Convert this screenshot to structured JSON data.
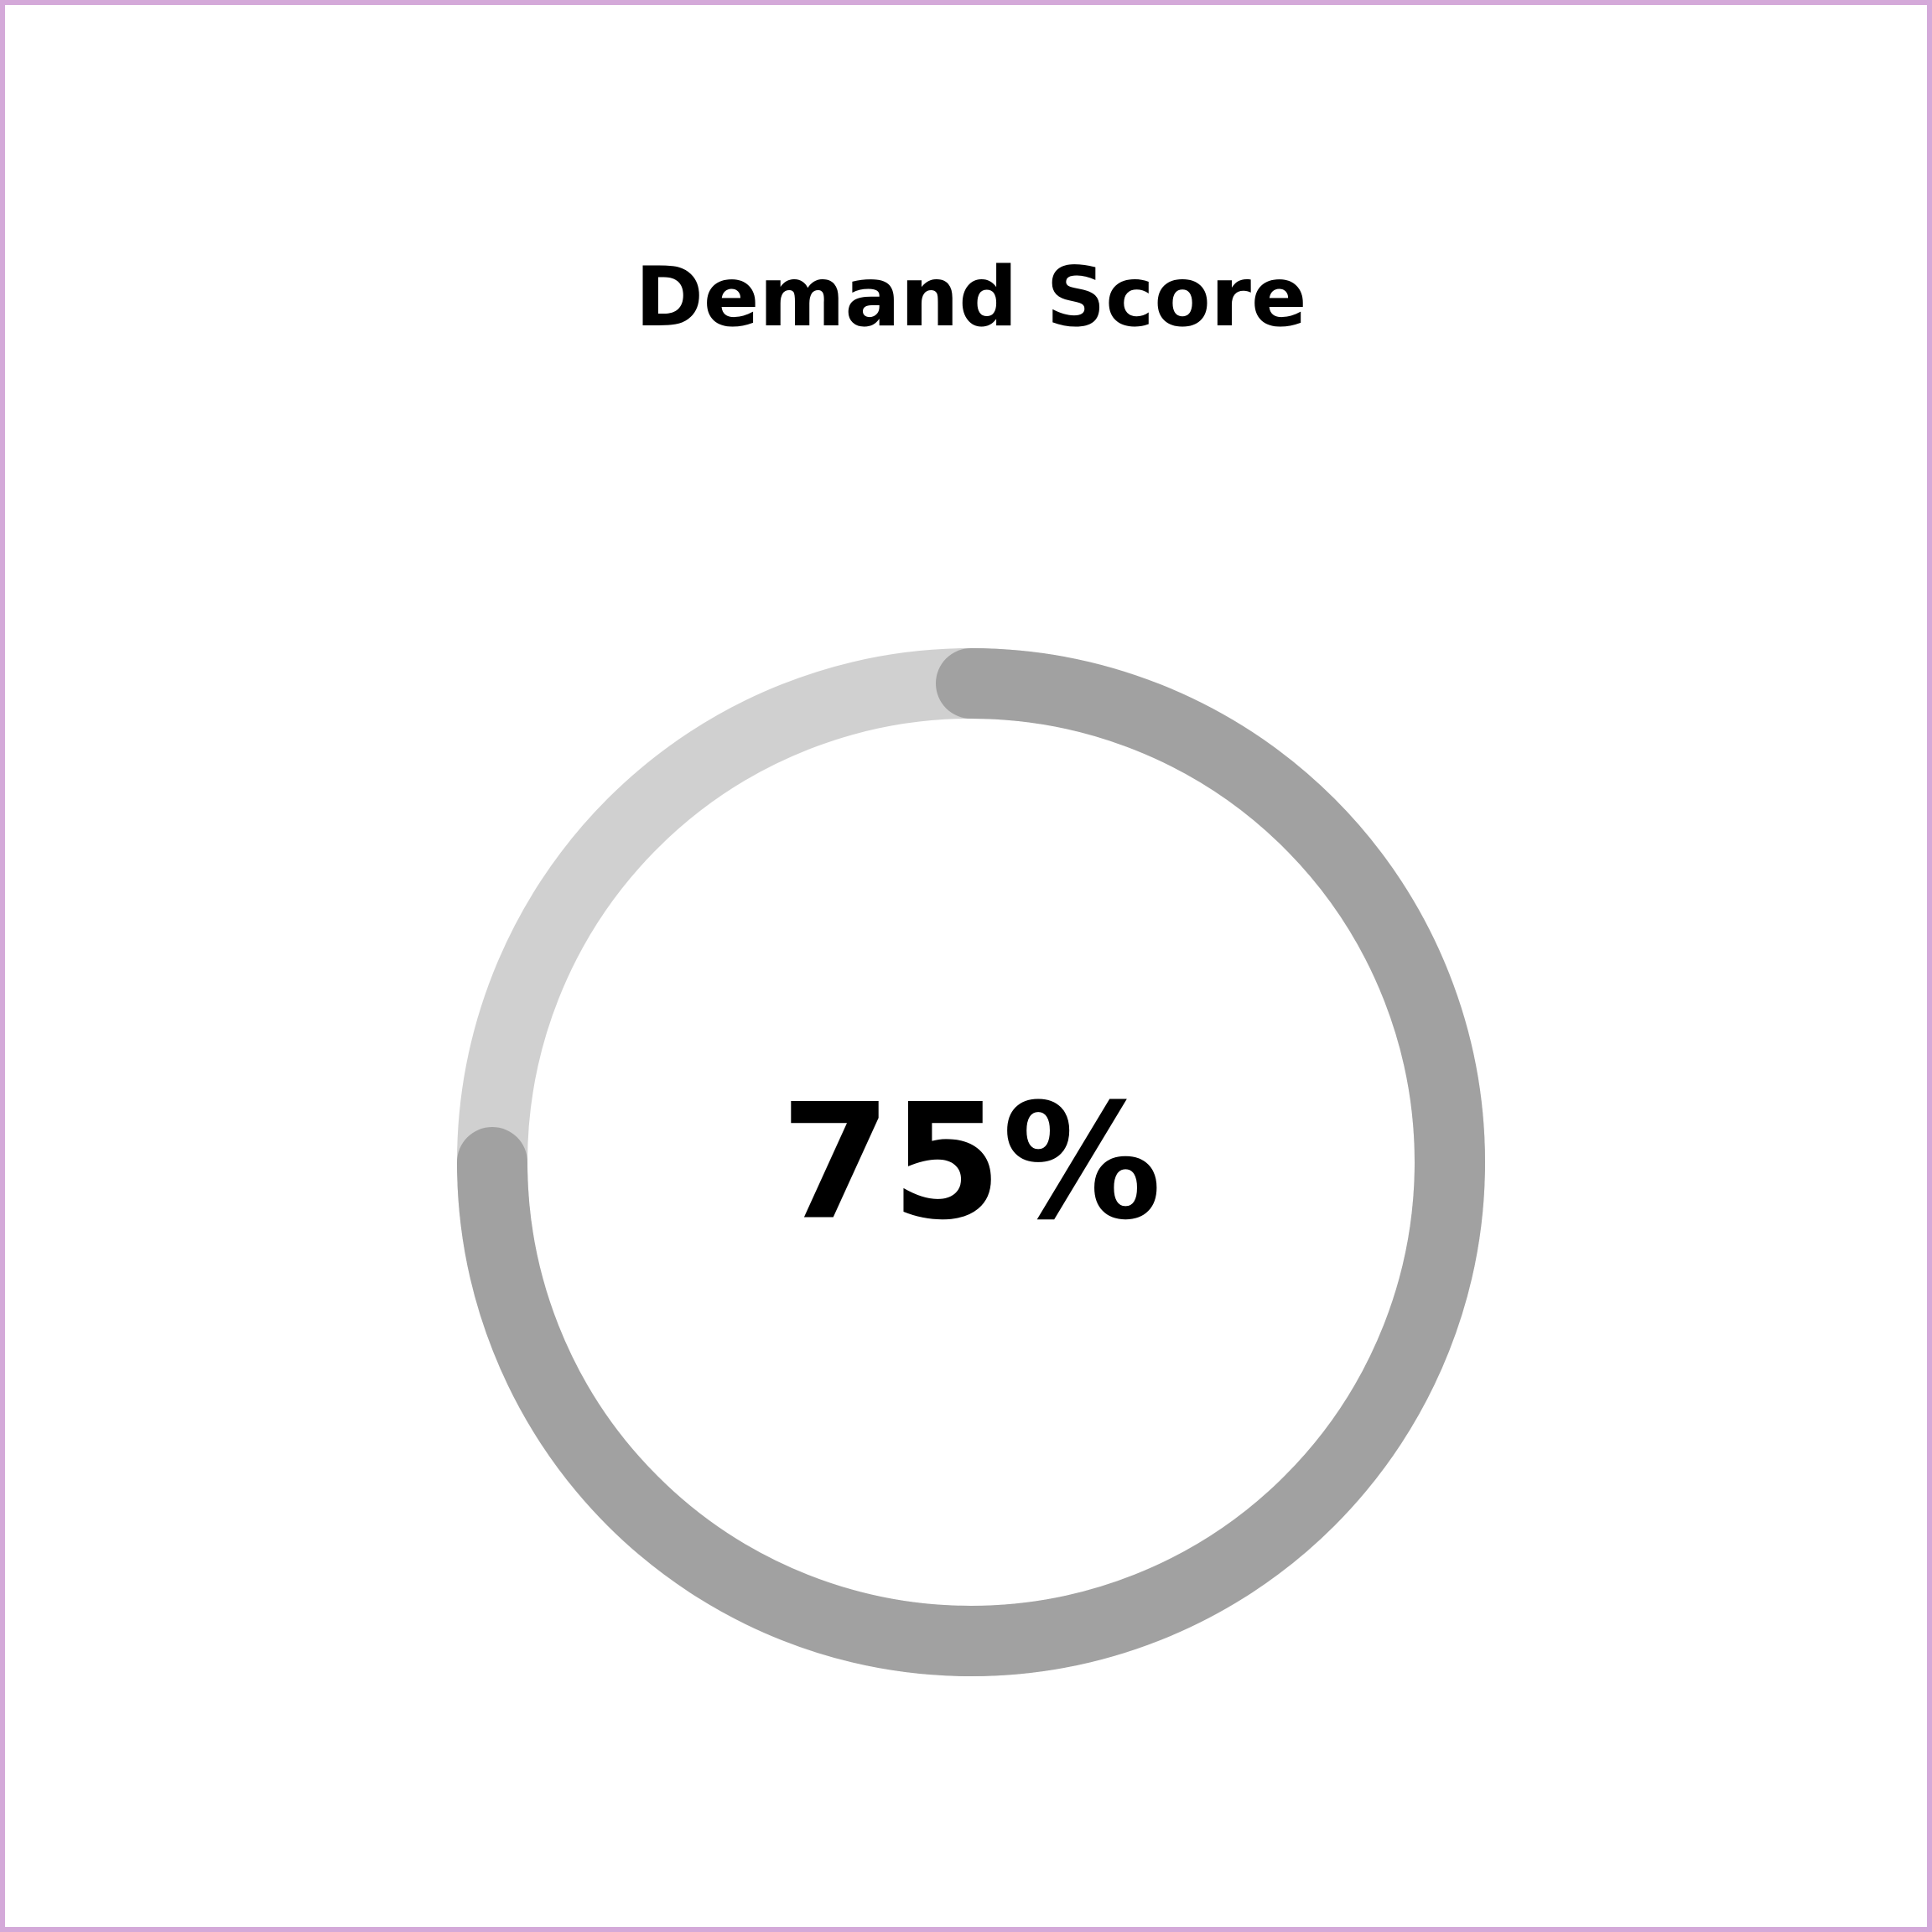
{
  "chart_data": {
    "type": "gauge",
    "title": "Demand Score",
    "value": 75,
    "max": 100,
    "display_value": "75%",
    "colors": {
      "track": "#d0d0d0",
      "progress": "#a1a1a1",
      "text": "#000000",
      "border": "#d4a9d9"
    }
  }
}
